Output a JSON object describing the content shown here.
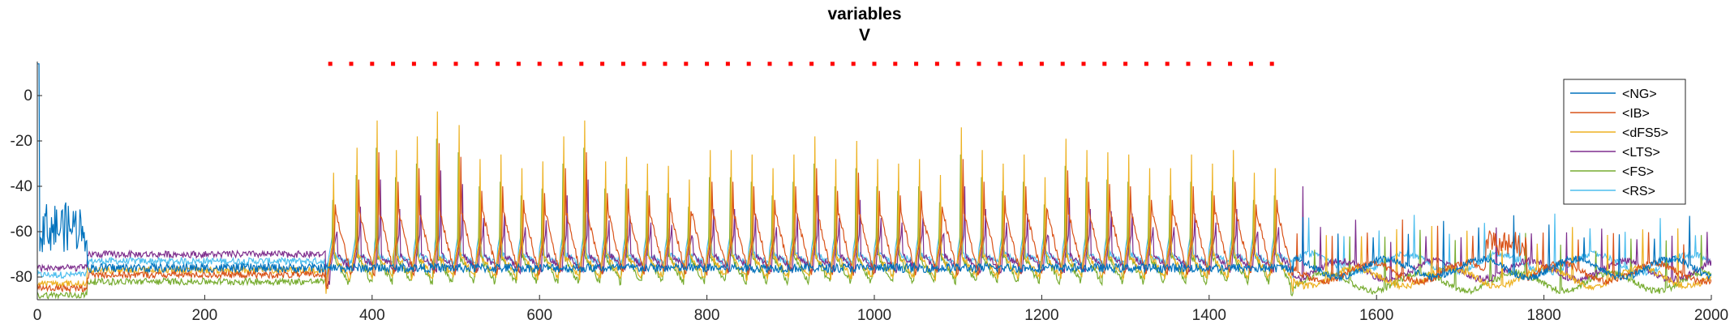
{
  "chart_data": {
    "type": "line",
    "title": [
      "variables",
      "V"
    ],
    "xlabel": "",
    "ylabel": "",
    "xlim": [
      0,
      2000
    ],
    "ylim": [
      -90,
      15
    ],
    "xticks": [
      0,
      200,
      400,
      600,
      800,
      1000,
      1200,
      1400,
      1600,
      1800,
      2000
    ],
    "yticks": [
      0,
      -20,
      -40,
      -60,
      -80
    ],
    "grid": false,
    "legend_position": "top-right",
    "series": [
      {
        "name": "<NG>",
        "color": "#0072BD",
        "baseline": -76
      },
      {
        "name": "<IB>",
        "color": "#D95319",
        "baseline": -78
      },
      {
        "name": "<dFS5>",
        "color": "#EDB120",
        "baseline": -80
      },
      {
        "name": "<LTS>",
        "color": "#7E2F8E",
        "baseline": -77
      },
      {
        "name": "<FS>",
        "color": "#77AC30",
        "baseline": -82
      },
      {
        "name": "<RS>",
        "color": "#4DBEEE",
        "baseline": -74
      }
    ],
    "stimulus_marker": {
      "color": "#FF0000",
      "y": 14,
      "x_start": 350,
      "x_end": 1485,
      "spacing": 25
    },
    "spike_times": [
      352,
      380,
      404,
      427,
      452,
      476,
      502,
      527,
      552,
      577,
      602,
      627,
      652,
      677,
      702,
      727,
      752,
      777,
      802,
      827,
      852,
      877,
      902,
      927,
      952,
      977,
      1002,
      1027,
      1052,
      1077,
      1102,
      1127,
      1152,
      1177,
      1202,
      1227,
      1252,
      1277,
      1302,
      1327,
      1352,
      1377,
      1402,
      1427,
      1452,
      1477
    ],
    "spike_peaks": [
      -22,
      -11,
      1,
      -12,
      -6,
      5,
      -1,
      -16,
      -14,
      -20,
      -17,
      -6,
      1,
      -17,
      -15,
      -18,
      -19,
      -25,
      -12,
      -12,
      -14,
      -20,
      -14,
      -6,
      -16,
      -8,
      -16,
      -18,
      -16,
      -23,
      -2,
      -12,
      -18,
      -14,
      -24,
      -7,
      -12,
      -13,
      -14,
      -20,
      -20,
      -14,
      -18,
      -12,
      -22,
      -20
    ]
  }
}
